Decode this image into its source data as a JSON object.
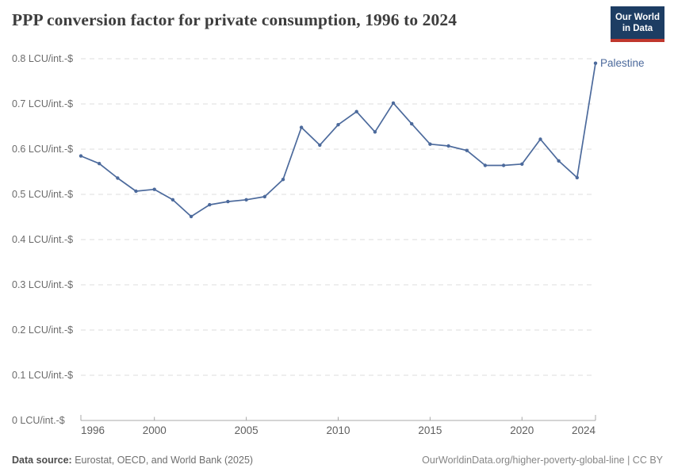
{
  "header": {
    "title": "PPP conversion factor for private consumption, 1996 to 2024",
    "logo": {
      "line1": "Our World",
      "line2": "in Data",
      "bg_color": "#1d3d63",
      "accent_color": "#c0372d"
    }
  },
  "chart_data": {
    "type": "line",
    "title": "PPP conversion factor for private consumption, 1996 to 2024",
    "unit": "LCU/int.-$",
    "xlabel": "",
    "ylabel": "LCU/int.-$",
    "xlim": [
      1996,
      2024
    ],
    "ylim": [
      0,
      0.8
    ],
    "grid": "dashed-horizontal",
    "legend_position": "end-of-line-label",
    "x_ticks": [
      1996,
      2000,
      2005,
      2010,
      2015,
      2020,
      2024
    ],
    "x_tick_labels": [
      "1996",
      "2000",
      "2005",
      "2010",
      "2015",
      "2020",
      "2024"
    ],
    "y_ticks": [
      0,
      0.1,
      0.2,
      0.3,
      0.4,
      0.5,
      0.6,
      0.7,
      0.8
    ],
    "y_tick_labels": [
      "0 LCU/int.-$",
      "0.1 LCU/int.-$",
      "0.2 LCU/int.-$",
      "0.3 LCU/int.-$",
      "0.4 LCU/int.-$",
      "0.5 LCU/int.-$",
      "0.6 LCU/int.-$",
      "0.7 LCU/int.-$",
      "0.8 LCU/int.-$"
    ],
    "series": [
      {
        "name": "Palestine",
        "color": "#4c6a9c",
        "x": [
          1996,
          1997,
          1998,
          1999,
          2000,
          2001,
          2002,
          2003,
          2004,
          2005,
          2006,
          2007,
          2008,
          2009,
          2010,
          2011,
          2012,
          2013,
          2014,
          2015,
          2016,
          2017,
          2018,
          2019,
          2020,
          2021,
          2022,
          2023,
          2024
        ],
        "values": [
          0.585,
          0.568,
          0.536,
          0.507,
          0.511,
          0.488,
          0.451,
          0.477,
          0.484,
          0.488,
          0.495,
          0.533,
          0.648,
          0.609,
          0.654,
          0.683,
          0.638,
          0.702,
          0.656,
          0.611,
          0.607,
          0.597,
          0.564,
          0.564,
          0.567,
          0.622,
          0.574,
          0.537,
          0.79
        ]
      }
    ],
    "colors": {
      "line": "#4c6a9c",
      "gridline": "#dcdcdc",
      "axis_line": "#a8a8a8",
      "tick_label": "#666666"
    }
  },
  "footer": {
    "datasource_label": "Data source:",
    "datasource_value": " Eurostat, OECD, and World Bank (2025)",
    "attribution": "OurWorldinData.org/higher-poverty-global-line | CC BY"
  }
}
